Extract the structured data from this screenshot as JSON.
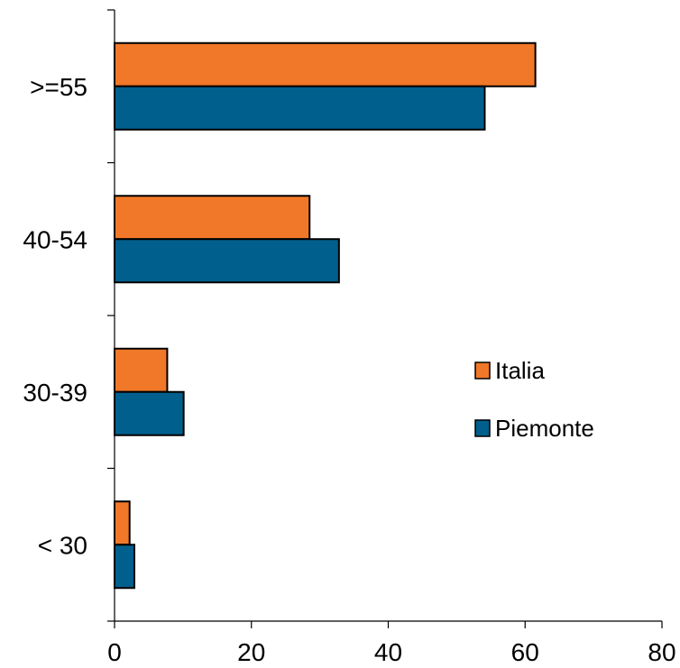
{
  "chart_data": {
    "type": "bar",
    "orientation": "horizontal",
    "categories": [
      "< 30",
      "30-39",
      "40-54",
      ">=55"
    ],
    "series": [
      {
        "name": "Italia",
        "values": [
          2.2,
          7.7,
          28.5,
          61.5
        ],
        "color": "#F07828"
      },
      {
        "name": "Piemonte",
        "values": [
          2.9,
          10.1,
          32.8,
          54.1
        ],
        "color": "#005F8C"
      }
    ],
    "xticks": [
      "0",
      "20",
      "40",
      "60",
      "80"
    ],
    "xlim": [
      0,
      80
    ],
    "title": "",
    "xlabel": "",
    "ylabel": "",
    "grid": false,
    "legend_position": "right"
  }
}
